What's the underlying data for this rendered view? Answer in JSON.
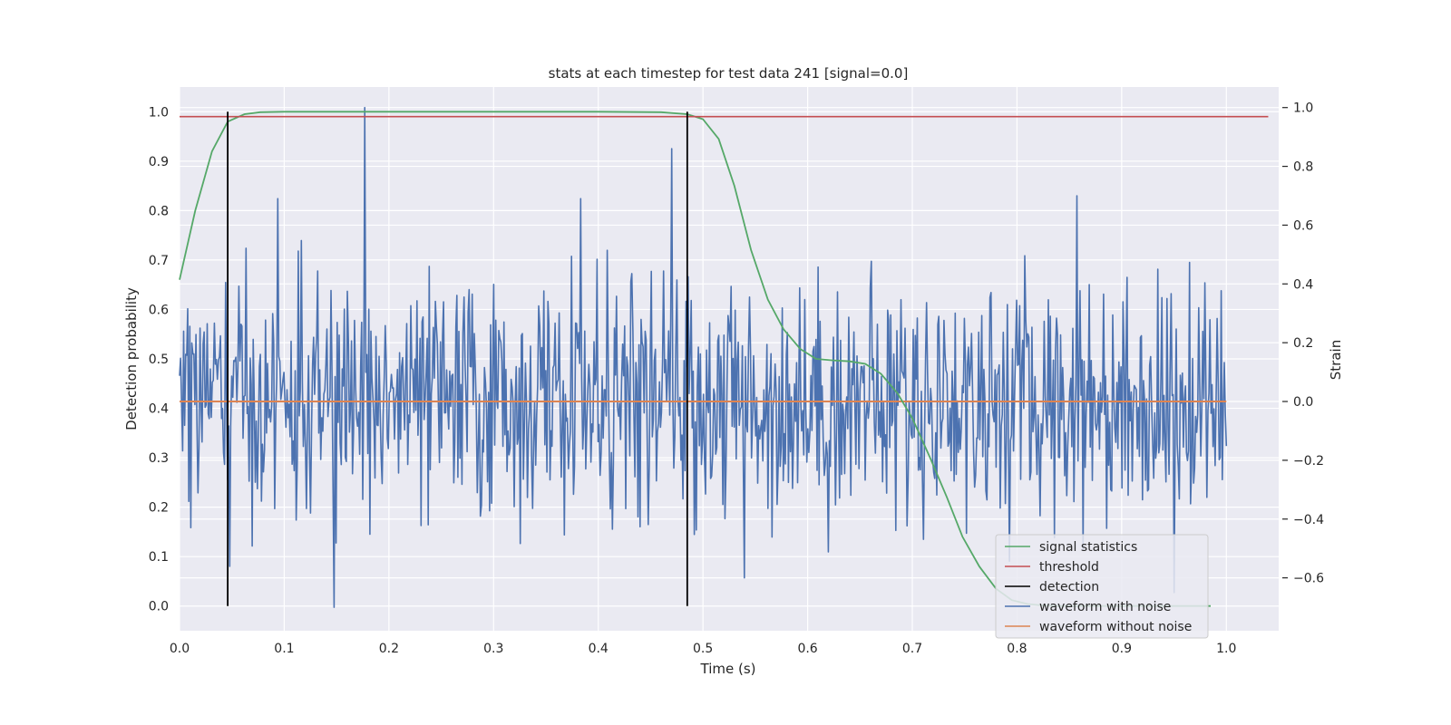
{
  "chart_data": {
    "type": "line",
    "title": "stats at each timestep for test data 241 [signal=0.0]",
    "xlabel": "Time (s)",
    "ylabel": "Detection probability",
    "ylabel_right": "Strain",
    "xlim": [
      0.0,
      1.05
    ],
    "ylim": [
      -0.05,
      1.05
    ],
    "ylim_right": [
      -0.78,
      1.07
    ],
    "x_ticks": [
      0.0,
      0.1,
      0.2,
      0.3,
      0.4,
      0.5,
      0.6,
      0.7,
      0.8,
      0.9,
      1.0
    ],
    "x_tick_labels": [
      "0.0",
      "0.1",
      "0.2",
      "0.3",
      "0.4",
      "0.5",
      "0.6",
      "0.7",
      "0.8",
      "0.9",
      "1.0"
    ],
    "y_ticks": [
      0.0,
      0.1,
      0.2,
      0.3,
      0.4,
      0.5,
      0.6,
      0.7,
      0.8,
      0.9,
      1.0
    ],
    "y_tick_labels": [
      "0.0",
      "0.1",
      "0.2",
      "0.3",
      "0.4",
      "0.5",
      "0.6",
      "0.7",
      "0.8",
      "0.9",
      "1.0"
    ],
    "y_right_ticks": [
      -0.6,
      -0.4,
      -0.2,
      0.0,
      0.2,
      0.4,
      0.6,
      0.8,
      1.0
    ],
    "y_right_tick_labels": [
      "−0.6",
      "−0.4",
      "−0.2",
      "0.0",
      "0.2",
      "0.4",
      "0.6",
      "0.8",
      "1.0"
    ],
    "grid": true,
    "legend_position": "lower-right",
    "series": [
      {
        "name": "signal statistics",
        "axis": "left",
        "color": "#55a868",
        "x": [
          0.0,
          0.015,
          0.031,
          0.046,
          0.062,
          0.077,
          0.1,
          0.2,
          0.3,
          0.4,
          0.46,
          0.485,
          0.5,
          0.515,
          0.53,
          0.546,
          0.562,
          0.577,
          0.593,
          0.608,
          0.624,
          0.64,
          0.655,
          0.67,
          0.686,
          0.7,
          0.717,
          0.733,
          0.748,
          0.764,
          0.78,
          0.795,
          0.81,
          0.826,
          0.84,
          0.86,
          0.9,
          0.95,
          0.985
        ],
        "y": [
          0.66,
          0.8,
          0.92,
          0.98,
          0.995,
          0.999,
          1.0,
          1.0,
          1.0,
          1.0,
          0.999,
          0.995,
          0.985,
          0.945,
          0.85,
          0.72,
          0.62,
          0.56,
          0.52,
          0.5,
          0.497,
          0.495,
          0.49,
          0.47,
          0.43,
          0.38,
          0.3,
          0.22,
          0.14,
          0.08,
          0.035,
          0.012,
          0.004,
          0.001,
          0.0,
          0.0,
          0.0,
          0.0,
          0.0
        ]
      },
      {
        "name": "threshold",
        "axis": "left",
        "color": "#c44e52",
        "x": [
          0.0,
          1.04
        ],
        "y": [
          0.99,
          0.99
        ]
      },
      {
        "name": "detection",
        "axis": "left",
        "color": "#000000",
        "segments": [
          {
            "x": 0.046,
            "y0": 0.0,
            "y1": 1.0
          },
          {
            "x": 0.485,
            "y0": 0.0,
            "y1": 1.0
          }
        ]
      },
      {
        "name": "waveform with noise",
        "axis": "right",
        "color": "#4c72b0",
        "samples": 1024,
        "x_range": [
          0.0,
          1.0
        ],
        "amplitude_std": 0.2,
        "max": 1.0,
        "min": -0.7,
        "peaks": [
          {
            "x": 0.177,
            "y": 1.0
          },
          {
            "x": 0.47,
            "y": 0.86
          },
          {
            "x": 0.148,
            "y": -0.7
          },
          {
            "x": 0.094,
            "y": 0.69
          },
          {
            "x": 0.383,
            "y": 0.69
          },
          {
            "x": 0.857,
            "y": 0.7
          },
          {
            "x": 0.54,
            "y": -0.6
          },
          {
            "x": 0.95,
            "y": -0.65
          }
        ]
      },
      {
        "name": "waveform without noise",
        "axis": "right",
        "color": "#dd8452",
        "x": [
          0.0,
          1.0
        ],
        "y": [
          0.0,
          0.0
        ]
      }
    ]
  }
}
